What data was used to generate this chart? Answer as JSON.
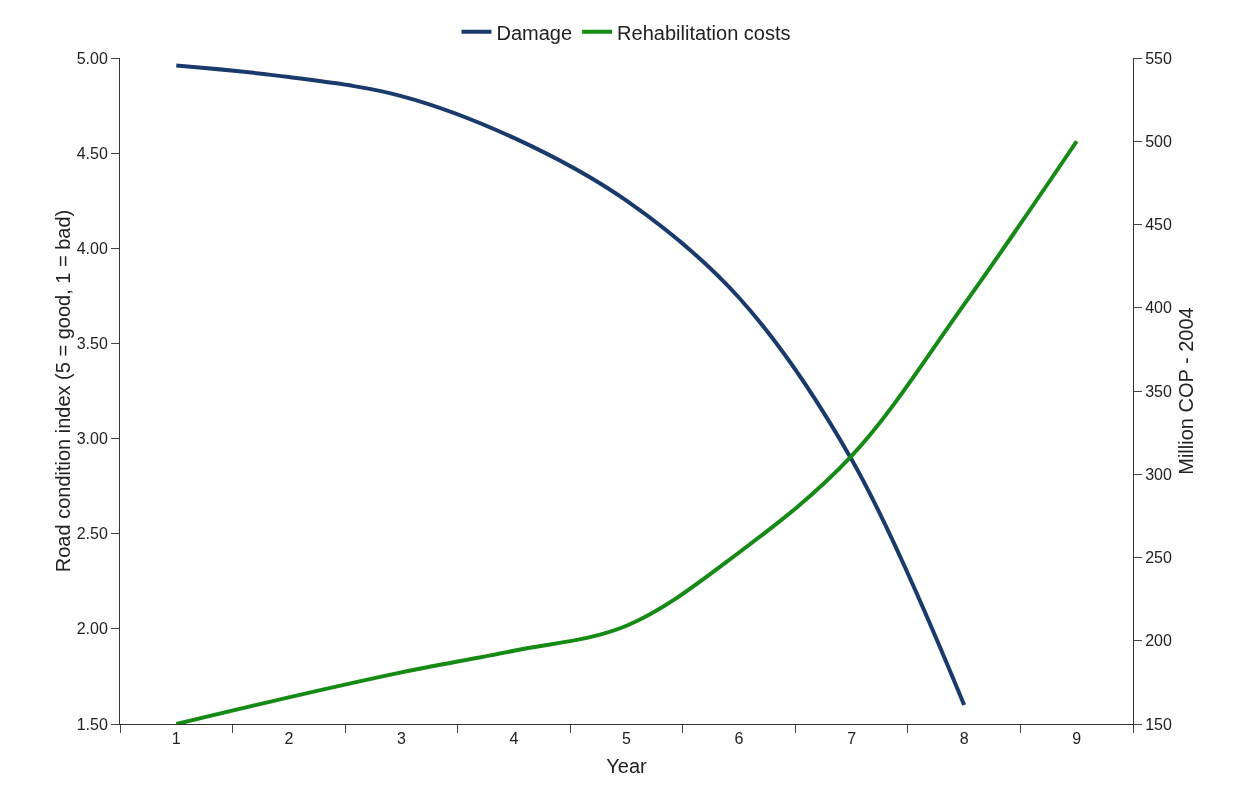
{
  "chart_data": {
    "type": "line",
    "xlabel": "Year",
    "ylabel": "Road condition index (5 = good, 1 = bad)",
    "y2label": "Million COP - 2004",
    "categories": [
      "1",
      "2",
      "3",
      "4",
      "5",
      "6",
      "7",
      "8",
      "9"
    ],
    "series": [
      {
        "name": "Damage",
        "color": "#1a3a6b",
        "values": [
          4.96,
          4.9,
          4.8,
          4.58,
          4.25,
          3.74,
          2.89,
          1.6,
          null
        ]
      },
      {
        "name": "Rehabilitation costs",
        "color": "#158a15",
        "axis": "y2",
        "values": [
          150,
          166,
          181,
          194,
          209,
          253,
          311,
          402,
          500
        ]
      }
    ],
    "ylim": [
      1.5,
      5
    ],
    "yticks": [
      {
        "value": 1.5,
        "label": "1.50"
      },
      {
        "value": 2,
        "label": "2.00"
      },
      {
        "value": 2.5,
        "label": "2.50"
      },
      {
        "value": 3,
        "label": "3.00"
      },
      {
        "value": 3.5,
        "label": "3.50"
      },
      {
        "value": 4,
        "label": "4.00"
      },
      {
        "value": 4.5,
        "label": "4.50"
      },
      {
        "value": 5,
        "label": "5.00"
      }
    ],
    "y2lim": [
      150,
      550
    ],
    "y2ticks": [
      150,
      200,
      250,
      300,
      350,
      400,
      450,
      500,
      550
    ],
    "grid": false,
    "legend": "top",
    "marker": "none",
    "line_style": "solid"
  }
}
